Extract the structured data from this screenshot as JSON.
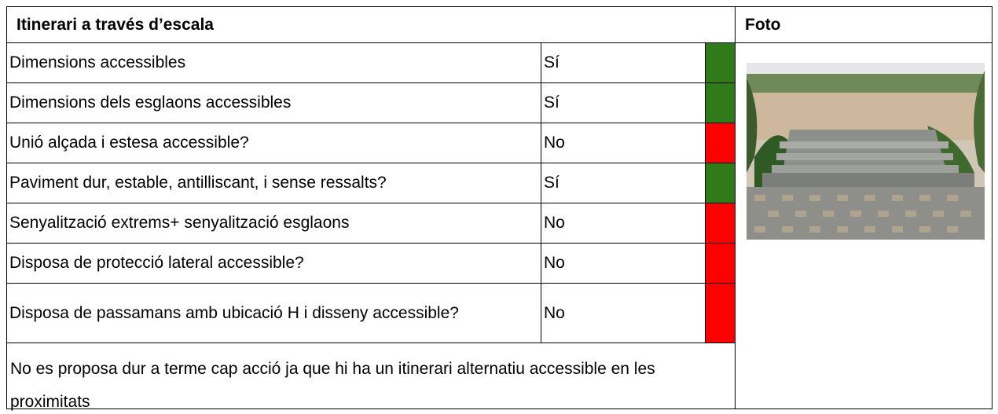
{
  "header": {
    "title": "Itinerari a través d’escala",
    "photo_label": "Foto"
  },
  "rows": [
    {
      "label": "Dimensions accessibles",
      "answer": "Sí",
      "color": "#317a19"
    },
    {
      "label": "Dimensions dels esglaons accessibles",
      "answer": "Sí",
      "color": "#317a19"
    },
    {
      "label": "Unió alçada i estesa accessible?",
      "answer": "No",
      "color": "#ff0000"
    },
    {
      "label": "Paviment dur, estable, antilliscant, i sense ressalts?",
      "answer": "Sí",
      "color": "#317a19"
    },
    {
      "label": "Senyalització extrems+ senyalització esglaons",
      "answer": "No",
      "color": "#ff0000"
    },
    {
      "label": "Disposa de protecció lateral accessible?",
      "answer": "No",
      "color": "#ff0000"
    },
    {
      "label": "Disposa de passamans amb ubicació H i disseny accessible?",
      "answer": "No",
      "color": "#ff0000"
    }
  ],
  "note": "No es proposa dur a terme cap acció ja que hi ha un itinerari alternatiu accessible en les proximitats"
}
